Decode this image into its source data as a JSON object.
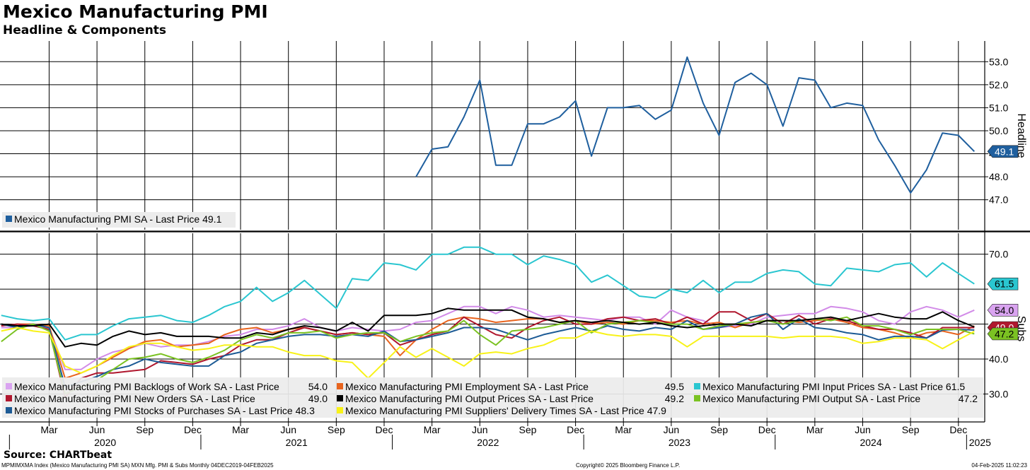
{
  "title": "Mexico Manufacturing PMI",
  "subtitle": "Headline & Components",
  "source": "Source: CHARTbeat",
  "footer": {
    "left": "MPMIMXMA Index (Mexico Manufacturing PMI SA) MXN Mfg. PMI & Subs  Monthly 04DEC2019-04FEB2025",
    "center": "Copyright© 2025 Bloomberg Finance L.P.",
    "right": "04-Feb-2025 11:02:23"
  },
  "chart_data": {
    "type": "line",
    "x_month_labels": [
      "Mar",
      "Jun",
      "Sep",
      "Dec",
      "Mar",
      "Jun",
      "Sep",
      "Dec",
      "Mar",
      "Jun",
      "Sep",
      "Dec",
      "Mar",
      "Jun",
      "Sep",
      "Dec",
      "Mar",
      "Jun",
      "Sep",
      "Dec"
    ],
    "x_year_labels": [
      "2020",
      "2021",
      "2022",
      "2023",
      "2024",
      "2025"
    ],
    "months": [
      "Dec 2019",
      "Jan 2020",
      "Feb 2020",
      "Mar 2020",
      "Apr 2020",
      "May 2020",
      "Jun 2020",
      "Jul 2020",
      "Aug 2020",
      "Sep 2020",
      "Oct 2020",
      "Nov 2020",
      "Dec 2020",
      "Jan 2021",
      "Feb 2021",
      "Mar 2021",
      "Apr 2021",
      "May 2021",
      "Jun 2021",
      "Jul 2021",
      "Aug 2021",
      "Sep 2021",
      "Oct 2021",
      "Nov 2021",
      "Dec 2021",
      "Jan 2022",
      "Feb 2022",
      "Mar 2022",
      "Apr 2022",
      "May 2022",
      "Jun 2022",
      "Jul 2022",
      "Aug 2022",
      "Sep 2022",
      "Oct 2022",
      "Nov 2022",
      "Dec 2022",
      "Jan 2023",
      "Feb 2023",
      "Mar 2023",
      "Apr 2023",
      "May 2023",
      "Jun 2023",
      "Jul 2023",
      "Aug 2023",
      "Sep 2023",
      "Oct 2023",
      "Nov 2023",
      "Dec 2023",
      "Jan 2024",
      "Feb 2024",
      "Mar 2024",
      "Apr 2024",
      "May 2024",
      "Jun 2024",
      "Jul 2024",
      "Aug 2024",
      "Sep 2024",
      "Oct 2024",
      "Nov 2024",
      "Dec 2024",
      "Jan 2025"
    ],
    "panels": [
      {
        "name": "Headline",
        "ylabel": "Headline",
        "ylim": [
          45.7,
          53.9
        ],
        "yticks": [
          47.0,
          48.0,
          49.0,
          50.0,
          51.0,
          52.0,
          53.0
        ],
        "ytick_labels": [
          "47.0",
          "48.0",
          "49.0",
          "50.0",
          "51.0",
          "52.0",
          "53.0"
        ],
        "series": [
          {
            "name": "Mexico Manufacturing PMI SA",
            "legend": "Mexico Manufacturing PMI SA - Last Price",
            "last": "49.1",
            "color": "#1f5f9e",
            "start_index": 26,
            "values": [
              48.0,
              49.2,
              49.3,
              50.6,
              52.2,
              48.5,
              48.5,
              50.3,
              50.3,
              50.6,
              51.3,
              48.9,
              51.0,
              51.0,
              51.1,
              50.5,
              50.9,
              53.2,
              51.2,
              49.8,
              52.1,
              52.5,
              52.0,
              50.2,
              52.3,
              52.2,
              51.0,
              51.2,
              51.1,
              49.6,
              48.5,
              47.3,
              48.3,
              49.9,
              49.8,
              49.1
            ]
          }
        ]
      },
      {
        "name": "Subs",
        "ylabel": "Subs",
        "ylim": [
          22.0,
          76.0
        ],
        "yticks": [
          30.0,
          40.0,
          50.0,
          60.0,
          70.0
        ],
        "ytick_labels": [
          "30.0",
          "40.0",
          "",
          "",
          "70.0"
        ],
        "series": [
          {
            "name": "Backlogs of Work",
            "legend": "Mexico Manufacturing PMI Backlogs of Work SA - Last Price",
            "last": "54.0",
            "color": "#d28be8",
            "start_index": 0,
            "values": [
              49,
              49,
              49.5,
              49,
              37,
              37,
              40,
              42,
              43,
              44.5,
              43.5,
              44,
              44,
              45,
              46.5,
              47,
              48.5,
              48.5,
              49.5,
              51.5,
              49,
              48,
              49,
              48.5,
              48,
              48.5,
              50.5,
              51,
              53,
              55,
              55,
              53,
              55,
              54,
              52,
              52.5,
              52,
              51.5,
              51,
              52,
              52,
              50,
              54,
              52,
              51,
              49,
              49.5,
              50,
              52,
              52.5,
              53,
              53,
              55,
              54.5,
              53.5,
              51,
              50,
              53.5,
              55,
              54,
              52,
              54
            ]
          },
          {
            "name": "Employment",
            "legend": "Mexico Manufacturing PMI Employment SA - Last Price",
            "last": "49.5",
            "color": "#e8641e",
            "start_index": 0,
            "values": [
              49.5,
              50,
              50,
              49.5,
              34.5,
              36,
              38,
              40.5,
              43,
              45,
              45.5,
              43.5,
              44,
              44.5,
              47,
              48.5,
              49,
              47.5,
              48.5,
              49,
              48,
              47,
              47.5,
              47,
              46.5,
              41,
              45.5,
              48.5,
              51,
              52,
              51.5,
              50.5,
              51,
              51.5,
              51.5,
              50.5,
              51,
              50,
              50.5,
              50,
              51,
              51,
              50.5,
              51,
              50,
              50.5,
              49,
              50.5,
              51,
              51,
              50.5,
              51,
              51.5,
              50.5,
              49,
              48.5,
              47.5,
              46,
              47.5,
              48,
              47,
              49.5
            ]
          },
          {
            "name": "Input Prices",
            "legend": "Mexico Manufacturing PMI Input Prices SA - Last Price",
            "last": "61.5",
            "color": "#2ac6d0",
            "start_index": 0,
            "values": [
              52.5,
              51.5,
              51,
              51.5,
              45.5,
              47,
              47,
              49.5,
              51.5,
              52,
              52.5,
              51,
              50.5,
              52.5,
              55,
              56.5,
              60.5,
              56.5,
              59,
              62.5,
              58.5,
              54.5,
              63,
              62.5,
              67.5,
              67,
              65.5,
              70,
              70,
              72,
              72,
              70,
              70,
              67,
              69.5,
              68.5,
              67,
              62,
              64,
              61,
              58,
              57.5,
              60,
              59,
              62.5,
              59,
              62,
              62,
              64.5,
              65.5,
              65,
              61.5,
              61,
              66,
              65.5,
              65,
              67,
              67.5,
              63.5,
              67.5,
              64.5,
              61.5
            ]
          },
          {
            "name": "New Orders",
            "legend": "Mexico Manufacturing PMI New Orders SA - Last Price",
            "last": "49.0",
            "color": "#b0172e",
            "start_index": 0,
            "values": [
              49.5,
              50,
              49.5,
              48.5,
              29,
              34.5,
              36,
              36,
              36.5,
              37,
              39.5,
              39,
              38.5,
              40,
              41,
              44,
              45.5,
              45.5,
              47.5,
              49,
              48,
              47,
              47.5,
              47,
              47.5,
              44,
              45.5,
              47,
              48,
              52,
              49.5,
              47,
              46,
              49,
              51,
              52,
              50,
              50,
              51.5,
              52,
              51,
              51.5,
              50,
              52,
              50,
              53.5,
              53.5,
              51,
              53,
              50,
              52.5,
              50,
              51.5,
              51,
              49.5,
              48.5,
              48.5,
              47.5,
              46,
              49,
              49,
              49
            ]
          },
          {
            "name": "Output Prices",
            "legend": "Mexico Manufacturing PMI Output Prices SA - Last Price",
            "last": "49.2",
            "color": "#000000",
            "start_index": 0,
            "values": [
              50,
              49.5,
              49.5,
              50,
              43.5,
              44.5,
              44,
              46.5,
              48,
              47,
              47.5,
              46.5,
              46.5,
              46.5,
              46,
              46,
              47.5,
              47,
              48.5,
              49.5,
              49,
              48,
              50.5,
              48,
              52.5,
              52.5,
              52.5,
              53,
              54.5,
              54,
              54,
              54,
              54,
              52,
              51.5,
              50.5,
              51,
              50.5,
              51,
              50.5,
              50,
              50.5,
              49.5,
              49,
              49.5,
              50,
              50,
              49.5,
              51,
              51,
              51,
              51.5,
              52,
              51,
              52,
              53,
              52,
              51.5,
              51.5,
              53.5,
              51,
              49.2
            ]
          },
          {
            "name": "Output",
            "legend": "Mexico Manufacturing PMI Output SA - Last Price",
            "last": "47.2",
            "color": "#7bc222",
            "start_index": 0,
            "values": [
              45,
              48.5,
              50,
              48,
              30,
              32,
              34,
              37,
              40,
              40.5,
              41.5,
              40,
              39,
              40.5,
              42.5,
              45.5,
              47,
              46,
              47.5,
              47.5,
              48,
              46,
              47,
              47.5,
              47.5,
              45,
              46.5,
              47.5,
              48,
              51,
              47,
              44,
              48,
              48.5,
              49,
              50,
              51,
              47.5,
              50,
              50.5,
              51,
              50.5,
              50,
              50,
              48.5,
              49.5,
              50,
              50.5,
              51,
              50,
              51,
              51.5,
              51,
              52,
              49.5,
              49.5,
              48.5,
              47,
              48.5,
              48.5,
              48.5,
              47.2
            ]
          },
          {
            "name": "Stocks of Purchases",
            "legend": "Mexico Manufacturing PMI Stocks of Purchases SA - Last Price",
            "last": "48.3",
            "color": "#1d5b95",
            "start_index": 0,
            "values": [
              50,
              49,
              50,
              49,
              32,
              33.5,
              35,
              37,
              38,
              40,
              39,
              38.5,
              38,
              38,
              41,
              42,
              44.5,
              45.5,
              46.5,
              47,
              47,
              46.5,
              47,
              46.5,
              48,
              45,
              45.5,
              46.5,
              47.5,
              49,
              49,
              48.5,
              47,
              45.5,
              47,
              48,
              49,
              48,
              49.5,
              48.5,
              48,
              49,
              48.5,
              51,
              48.5,
              49,
              50,
              52,
              53,
              48.5,
              51.5,
              49,
              48.5,
              47.5,
              47,
              45.5,
              46.5,
              46.5,
              46,
              48.3,
              48.5,
              48.3
            ]
          },
          {
            "name": "Suppliers' Delivery Times",
            "legend": "Mexico Manufacturing PMI Suppliers' Delivery Times SA - Last Price",
            "last": "47.9",
            "color": "#f8f218",
            "start_index": 0,
            "values": [
              48,
              49,
              48,
              47.5,
              38,
              36,
              38,
              41,
              43.5,
              44.5,
              44.5,
              43.5,
              42.5,
              43,
              44,
              44,
              43.5,
              43.5,
              42,
              41,
              41,
              39.5,
              39,
              34.5,
              39,
              43.5,
              40.5,
              43,
              40.5,
              38,
              41.5,
              42,
              41.5,
              43,
              44,
              46,
              46,
              48,
              47,
              46.5,
              47,
              47,
              46.5,
              43.5,
              46.5,
              46.5,
              46.5,
              46.5,
              46.5,
              46,
              46.5,
              46.5,
              46.5,
              46,
              44.5,
              45,
              46,
              46,
              45.5,
              43,
              45.5,
              47.9
            ]
          }
        ]
      }
    ],
    "legend_values": {
      "headline": "49.1",
      "backlogs": "54.0",
      "employment": "49.5",
      "input_prices": "61.5",
      "new_orders": "49.0",
      "output_prices": "49.2",
      "output": "47.2",
      "stocks": "48.3",
      "delivery": "47.9"
    },
    "right_badges": [
      {
        "value": "49.1",
        "panel": 0,
        "y": 49.1,
        "color": "#1f5f9e",
        "text_color": "#ffffff"
      },
      {
        "value": "61.5",
        "panel": 1,
        "y": 61.5,
        "color": "#2ac6d0",
        "text_color": "#000000"
      },
      {
        "value": "54.0",
        "panel": 1,
        "y": 54.0,
        "color": "#d9a3f0",
        "text_color": "#000000"
      },
      {
        "value": "49.0",
        "panel": 1,
        "y": 49.0,
        "color": "#b0172e",
        "text_color": "#ffffff"
      },
      {
        "value": "47.2",
        "panel": 1,
        "y": 47.2,
        "color": "#7bc222",
        "text_color": "#000000"
      }
    ]
  }
}
